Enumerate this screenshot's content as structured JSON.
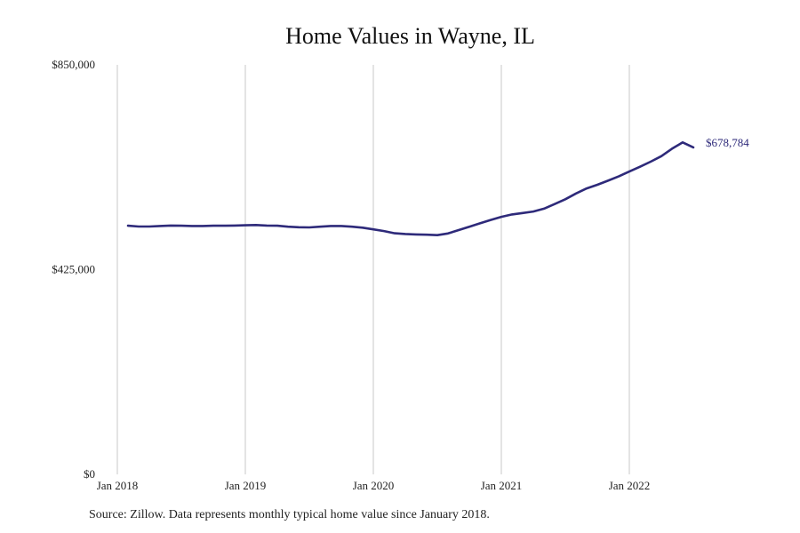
{
  "chart_data": {
    "type": "line",
    "title": "Home Values in Wayne, IL",
    "source": "Source: Zillow. Data represents monthly typical home value since January 2018.",
    "ylim": [
      0,
      850000
    ],
    "yticks": [
      {
        "value": 0,
        "label": "$0"
      },
      {
        "value": 425000,
        "label": "$425,000"
      },
      {
        "value": 850000,
        "label": "$850,000"
      }
    ],
    "xticks": [
      {
        "value": 2018.0,
        "label": "Jan 2018"
      },
      {
        "value": 2019.0,
        "label": "Jan 2019"
      },
      {
        "value": 2020.0,
        "label": "Jan 2020"
      },
      {
        "value": 2021.0,
        "label": "Jan 2021"
      },
      {
        "value": 2022.0,
        "label": "Jan 2022"
      }
    ],
    "grid": "vertical at x ticks",
    "end_label": "$678,784",
    "line_color": "#2e2a7a",
    "series": [
      {
        "x": [
          2018.083,
          2018.167,
          2018.25,
          2018.333,
          2018.417,
          2018.5,
          2018.583,
          2018.667,
          2018.75,
          2018.833,
          2018.917,
          2019.0,
          2019.083,
          2019.167,
          2019.25,
          2019.333,
          2019.417,
          2019.5,
          2019.583,
          2019.667,
          2019.75,
          2019.833,
          2019.917,
          2020.0,
          2020.083,
          2020.167,
          2020.25,
          2020.333,
          2020.417,
          2020.5,
          2020.583,
          2020.667,
          2020.75,
          2020.833,
          2020.917,
          2021.0,
          2021.083,
          2021.167,
          2021.25,
          2021.333,
          2021.417,
          2021.5,
          2021.583,
          2021.667,
          2021.75,
          2021.833,
          2021.917,
          2022.0,
          2022.083,
          2022.167,
          2022.25,
          2022.333,
          2022.417,
          2022.5
        ],
        "y": [
          516000,
          514500,
          514500,
          515500,
          516500,
          516000,
          515500,
          515500,
          516000,
          516000,
          516500,
          517000,
          517500,
          516500,
          516000,
          514000,
          513000,
          512500,
          514000,
          515500,
          515500,
          514000,
          512000,
          508500,
          505000,
          500500,
          499000,
          498000,
          497500,
          496500,
          500000,
          507000,
          514000,
          521000,
          528000,
          534500,
          539500,
          542500,
          545500,
          551500,
          561000,
          571000,
          583000,
          593500,
          601000,
          609500,
          618500,
          628500,
          638500,
          649000,
          660500,
          676000,
          689000,
          678784
        ]
      }
    ]
  }
}
